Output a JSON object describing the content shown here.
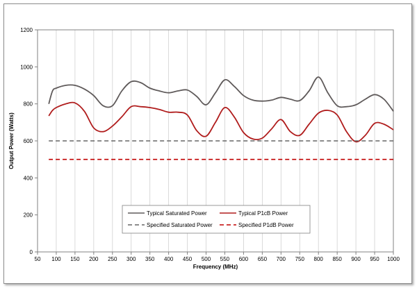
{
  "chart_data": {
    "type": "line",
    "title": "",
    "xlabel": "Frequency (MHz)",
    "ylabel": "Output Power (Watts)",
    "xlim": [
      50,
      1000
    ],
    "ylim": [
      0,
      1200
    ],
    "x_ticks": [
      "50",
      "100",
      "150",
      "200",
      "250",
      "300",
      "350",
      "400",
      "450",
      "500",
      "550",
      "600",
      "650",
      "700",
      "750",
      "800",
      "850",
      "900",
      "950",
      "1000"
    ],
    "y_ticks": [
      "0",
      "200",
      "400",
      "600",
      "800",
      "1000",
      "1200"
    ],
    "grid": "vertical",
    "legend_position": "bottom-center",
    "series": [
      {
        "name": "Typical Saturated Power",
        "color": "#5f5a5a",
        "style": "solid",
        "x": [
          80,
          90,
          100,
          125,
          150,
          175,
          200,
          225,
          250,
          275,
          300,
          325,
          350,
          375,
          400,
          425,
          450,
          475,
          500,
          525,
          550,
          575,
          600,
          625,
          650,
          675,
          700,
          725,
          750,
          775,
          800,
          825,
          850,
          875,
          900,
          925,
          950,
          975,
          1000
        ],
        "y": [
          800,
          870,
          885,
          900,
          900,
          880,
          845,
          790,
          790,
          870,
          920,
          915,
          885,
          870,
          860,
          870,
          875,
          840,
          795,
          860,
          930,
          895,
          845,
          820,
          815,
          820,
          835,
          825,
          818,
          870,
          945,
          860,
          790,
          785,
          795,
          825,
          850,
          825,
          760
        ]
      },
      {
        "name": "Typical P1cB Power",
        "color": "#b01c1c",
        "style": "solid",
        "x": [
          80,
          90,
          100,
          125,
          150,
          175,
          200,
          225,
          250,
          275,
          300,
          325,
          350,
          375,
          400,
          425,
          450,
          475,
          500,
          525,
          550,
          575,
          600,
          625,
          650,
          675,
          700,
          725,
          750,
          775,
          800,
          825,
          850,
          875,
          900,
          925,
          950,
          975,
          1000
        ],
        "y": [
          735,
          765,
          780,
          800,
          805,
          760,
          670,
          650,
          680,
          730,
          785,
          785,
          780,
          770,
          755,
          755,
          740,
          655,
          625,
          700,
          780,
          730,
          645,
          610,
          615,
          665,
          715,
          650,
          630,
          690,
          750,
          765,
          740,
          650,
          595,
          630,
          695,
          690,
          660
        ]
      },
      {
        "name": "Specified Saturated Power",
        "color": "#666666",
        "style": "dashed",
        "x": [
          80,
          1000
        ],
        "y": [
          600,
          600
        ]
      },
      {
        "name": "Specified P1dB Power",
        "color": "#c00000",
        "style": "dashed",
        "x": [
          80,
          1000
        ],
        "y": [
          500,
          500
        ]
      }
    ]
  }
}
